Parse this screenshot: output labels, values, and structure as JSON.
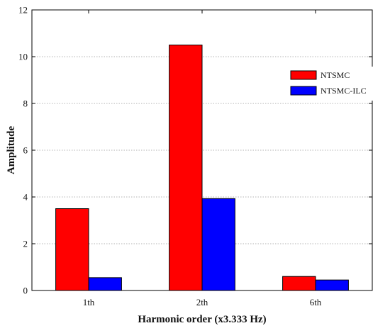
{
  "chart_data": {
    "type": "bar",
    "title": "",
    "xlabel": "Harmonic order (x3.333 Hz)",
    "ylabel": "Amplitude",
    "categories": [
      "1th",
      "2th",
      "6th"
    ],
    "series": [
      {
        "name": "NTSMC",
        "values": [
          3.5,
          10.5,
          0.6
        ],
        "color": "#ff0000"
      },
      {
        "name": "NTSMC-ILC",
        "values": [
          0.55,
          3.93,
          0.45
        ],
        "color": "#0000ff"
      }
    ],
    "ylim": [
      0,
      12
    ],
    "yticks": [
      0,
      2,
      4,
      6,
      8,
      10,
      12
    ],
    "grid": "horizontal-dotted",
    "legend_position": "top-right"
  }
}
